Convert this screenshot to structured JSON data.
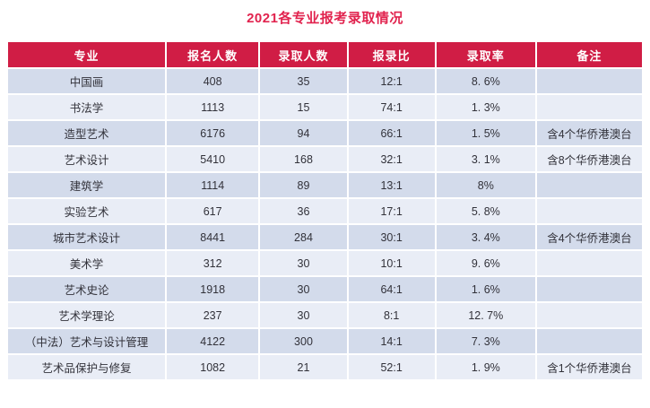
{
  "title": "2021各专业报考录取情况",
  "colors": {
    "title_text": "#e1234e",
    "header_bg": "#d01d45",
    "header_text": "#ffffff",
    "row_dark_bg": "#d3dbeb",
    "row_light_bg": "#e9edf6",
    "body_text": "#32323a",
    "page_bg": "#ffffff"
  },
  "chart_data": {
    "type": "table",
    "title": "2021各专业报考录取情况",
    "columns": [
      "专业",
      "报名人数",
      "录取人数",
      "报录比",
      "录取率",
      "备注"
    ],
    "rows": [
      [
        "中国画",
        "408",
        "35",
        "12:1",
        "8. 6%",
        ""
      ],
      [
        "书法学",
        "1113",
        "15",
        "74:1",
        "1. 3%",
        ""
      ],
      [
        "造型艺术",
        "6176",
        "94",
        "66:1",
        "1. 5%",
        "含4个华侨港澳台"
      ],
      [
        "艺术设计",
        "5410",
        "168",
        "32:1",
        "3. 1%",
        "含8个华侨港澳台"
      ],
      [
        "建筑学",
        "1114",
        "89",
        "13:1",
        "8%",
        ""
      ],
      [
        "实验艺术",
        "617",
        "36",
        "17:1",
        "5. 8%",
        ""
      ],
      [
        "城市艺术设计",
        "8441",
        "284",
        "30:1",
        "3. 4%",
        "含4个华侨港澳台"
      ],
      [
        "美术学",
        "312",
        "30",
        "10:1",
        "9. 6%",
        ""
      ],
      [
        "艺术史论",
        "1918",
        "30",
        "64:1",
        "1. 6%",
        ""
      ],
      [
        "艺术学理论",
        "237",
        "30",
        "8:1",
        "12. 7%",
        ""
      ],
      [
        "（中法）艺术与设计管理",
        "4122",
        "300",
        "14:1",
        "7. 3%",
        ""
      ],
      [
        "艺术品保护与修复",
        "1082",
        "21",
        "52:1",
        "1. 9%",
        "含1个华侨港澳台"
      ]
    ],
    "layout_hints": {
      "row_striping": "odd rows dark, even rows light",
      "all_cells_centered": true,
      "grid_lines": "white 2px separators"
    }
  }
}
